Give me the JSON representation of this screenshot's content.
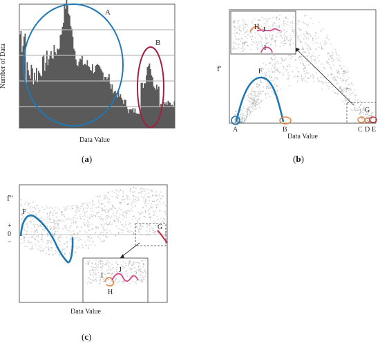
{
  "panel_a": {
    "caption_prefix": "(",
    "caption_letter": "a",
    "caption_suffix": ")",
    "ylabel": "Number of Data",
    "xlabel": "Data Value",
    "markers": [
      "A",
      "B"
    ],
    "colors": {
      "circle_A": "#1f78b4",
      "circle_B": "#a0223c",
      "bars": "#5a5a5a"
    }
  },
  "panel_b": {
    "caption_prefix": "(",
    "caption_letter": "b",
    "caption_suffix": ")",
    "ylabel": "f′",
    "xlabel": "Data Value",
    "markers": [
      "A",
      "B",
      "C",
      "D",
      "E",
      "F",
      "G"
    ],
    "inset_markers": [
      "H",
      "J",
      "I"
    ],
    "colors": {
      "curve": "#1f78b4",
      "orange": "#e8854a",
      "pink": "#d3458f"
    }
  },
  "panel_c": {
    "caption_prefix": "(",
    "caption_letter": "c",
    "caption_suffix": ")",
    "ylabel": "f″",
    "ytick_plus": "+",
    "ytick_zero": "0",
    "ytick_minus": "−",
    "xlabel": "Data Value",
    "markers": [
      "F",
      "G"
    ],
    "inset_markers": [
      "I",
      "J",
      "H"
    ],
    "colors": {
      "curve": "#1f78b4",
      "orange": "#e8854a",
      "pink": "#d3458f",
      "red": "#c0283c"
    }
  }
}
